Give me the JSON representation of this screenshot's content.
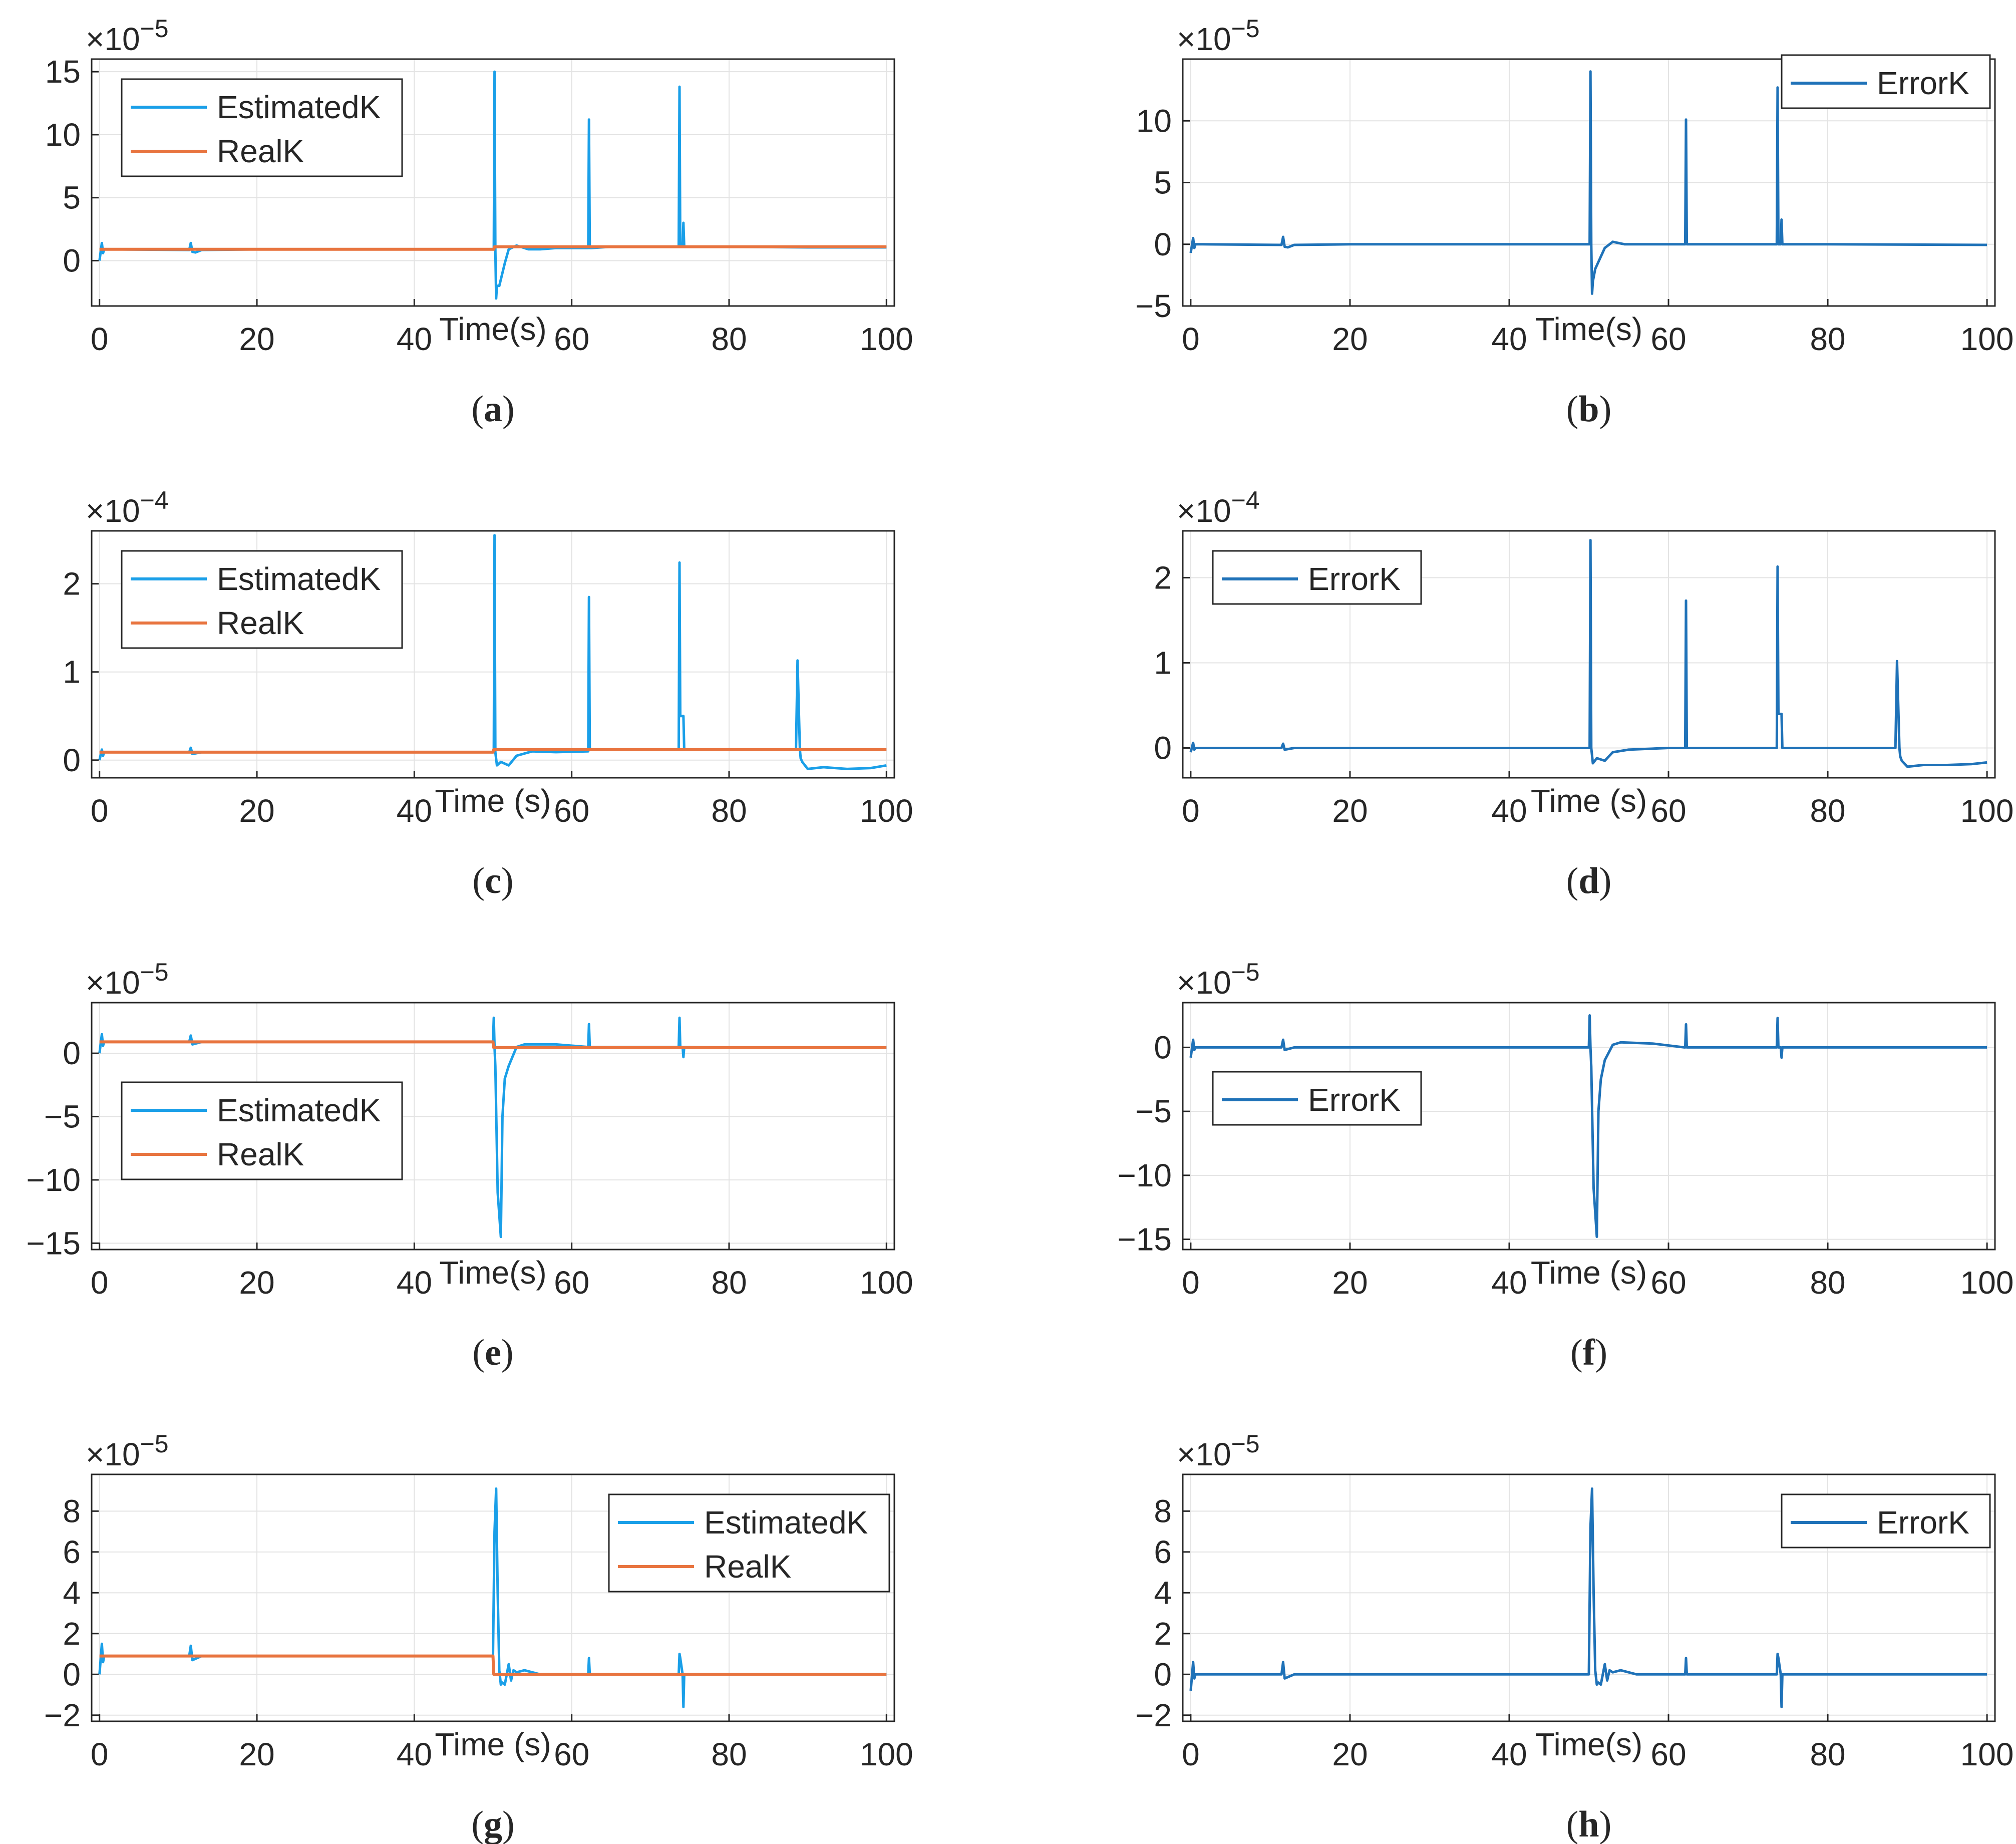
{
  "colors": {
    "estimated": "#1a9fe8",
    "real": "#e8743f",
    "error": "#1f72b8",
    "axis": "#262626",
    "grid": "#e3e3e3"
  },
  "chart_data": [
    {
      "id": "a",
      "caption_letter": "a",
      "type": "line",
      "exponent_text": "×10",
      "exponent": "−5",
      "xlabel": "Time(s)",
      "xlim": [
        -1,
        101
      ],
      "xticks": [
        0,
        20,
        40,
        60,
        80,
        100
      ],
      "xtick_labels": [
        "0",
        "20",
        "40",
        "60",
        "80",
        "100"
      ],
      "ylim": [
        -3.6,
        16
      ],
      "yticks": [
        0,
        5,
        10,
        15
      ],
      "ytick_labels": [
        "0",
        "5",
        "10",
        "15"
      ],
      "grid": true,
      "legend_position": "top-left",
      "series": [
        {
          "name": "EstimatedK",
          "color_key": "estimated",
          "x": [
            0,
            0.3,
            0.45,
            0.6,
            0.8,
            1.5,
            11.4,
            11.6,
            11.8,
            12.2,
            13,
            20,
            40,
            50.1,
            50.2,
            50.3,
            50.4,
            50.5,
            50.8,
            51.5,
            52,
            53,
            54.5,
            56,
            58,
            60,
            62.1,
            62.2,
            62.3,
            62.5,
            65,
            70,
            73.6,
            73.7,
            73.8,
            74.1,
            74.2,
            74.3,
            74.5,
            80,
            90,
            100
          ],
          "y": [
            0,
            1.4,
            0.6,
            0.9,
            0.9,
            0.9,
            0.85,
            1.4,
            0.7,
            0.65,
            0.85,
            0.9,
            0.9,
            0.9,
            15,
            0.9,
            -3,
            -2,
            -2,
            -0.2,
            0.9,
            1.2,
            0.9,
            0.9,
            1,
            1,
            1,
            11.2,
            1,
            1,
            1.1,
            1.1,
            1.1,
            13.8,
            1.1,
            1.1,
            3,
            1.1,
            1.1,
            1.1,
            1.05,
            1.05
          ]
        },
        {
          "name": "RealK",
          "color_key": "real",
          "x": [
            0,
            50.1,
            50.2,
            100
          ],
          "y": [
            0.9,
            0.9,
            1.1,
            1.1
          ]
        }
      ]
    },
    {
      "id": "b",
      "caption_letter": "b",
      "type": "line",
      "exponent_text": "×10",
      "exponent": "−5",
      "xlabel": "Time(s)",
      "xlim": [
        -1,
        101
      ],
      "xticks": [
        0,
        20,
        40,
        60,
        80,
        100
      ],
      "xtick_labels": [
        "0",
        "20",
        "40",
        "60",
        "80",
        "100"
      ],
      "ylim": [
        -5,
        15
      ],
      "yticks": [
        -5,
        0,
        5,
        10
      ],
      "ytick_labels": [
        "−5",
        "0",
        "5",
        "10"
      ],
      "grid": true,
      "legend_position": "top-right",
      "series": [
        {
          "name": "ErrorK",
          "color_key": "error",
          "x": [
            0,
            0.3,
            0.45,
            0.6,
            1.5,
            11.4,
            11.6,
            11.8,
            12.2,
            13,
            20,
            40,
            50.1,
            50.2,
            50.3,
            50.4,
            50.5,
            50.8,
            51.5,
            52,
            53,
            54.5,
            56,
            60,
            62.1,
            62.2,
            62.3,
            65,
            73.6,
            73.7,
            73.8,
            74.1,
            74.2,
            74.3,
            80,
            100
          ],
          "y": [
            -0.7,
            0.5,
            -0.3,
            0,
            0,
            -0.05,
            0.6,
            -0.2,
            -0.25,
            -0.05,
            0,
            0,
            0,
            14,
            0,
            -4,
            -3,
            -2,
            -1,
            -0.3,
            0.2,
            0,
            0,
            0,
            0,
            10.1,
            0,
            0,
            0,
            12.7,
            0,
            0,
            2,
            0,
            0,
            -0.05
          ]
        }
      ]
    },
    {
      "id": "c",
      "caption_letter": "c",
      "type": "line",
      "exponent_text": "×10",
      "exponent": "−4",
      "xlabel": "Time (s)",
      "xlim": [
        -1,
        101
      ],
      "xticks": [
        0,
        20,
        40,
        60,
        80,
        100
      ],
      "xtick_labels": [
        "0",
        "20",
        "40",
        "60",
        "80",
        "100"
      ],
      "ylim": [
        -0.2,
        2.6
      ],
      "yticks": [
        0,
        1,
        2
      ],
      "ytick_labels": [
        "0",
        "1",
        "2"
      ],
      "grid": true,
      "legend_position": "top-left",
      "series": [
        {
          "name": "EstimatedK",
          "color_key": "estimated",
          "x": [
            0,
            0.3,
            0.45,
            0.6,
            1.5,
            11.4,
            11.6,
            11.8,
            13,
            40,
            50.1,
            50.2,
            50.3,
            50.5,
            51,
            52,
            53,
            55,
            58,
            62.1,
            62.2,
            62.3,
            65,
            73.6,
            73.7,
            73.8,
            74.2,
            74.3,
            80,
            88.5,
            88.6,
            88.7,
            89.0,
            89.1,
            89.3,
            90,
            92,
            95,
            98,
            100
          ],
          "y": [
            0,
            0.12,
            0.05,
            0.09,
            0.09,
            0.09,
            0.14,
            0.07,
            0.09,
            0.09,
            0.09,
            2.55,
            0.09,
            -0.06,
            -0.02,
            -0.06,
            0.05,
            0.1,
            0.09,
            0.1,
            1.85,
            0.12,
            0.12,
            0.12,
            2.24,
            0.5,
            0.5,
            0.12,
            0.12,
            0.12,
            0.6,
            1.13,
            0.12,
            0.02,
            -0.02,
            -0.1,
            -0.08,
            -0.1,
            -0.09,
            -0.06
          ]
        },
        {
          "name": "RealK",
          "color_key": "real",
          "x": [
            0,
            50,
            50.1,
            100
          ],
          "y": [
            0.09,
            0.09,
            0.12,
            0.12
          ]
        }
      ]
    },
    {
      "id": "d",
      "caption_letter": "d",
      "type": "line",
      "exponent_text": "×10",
      "exponent": "−4",
      "xlabel": "Time (s)",
      "xlim": [
        -1,
        101
      ],
      "xticks": [
        0,
        20,
        40,
        60,
        80,
        100
      ],
      "xtick_labels": [
        "0",
        "20",
        "40",
        "60",
        "80",
        "100"
      ],
      "ylim": [
        -0.35,
        2.55
      ],
      "yticks": [
        0,
        1,
        2
      ],
      "ytick_labels": [
        "0",
        "1",
        "2"
      ],
      "grid": true,
      "legend_position": "top-left",
      "series": [
        {
          "name": "ErrorK",
          "color_key": "error",
          "x": [
            0,
            0.3,
            0.45,
            0.6,
            1.5,
            11.4,
            11.6,
            11.8,
            13,
            40,
            50.1,
            50.2,
            50.3,
            50.5,
            51,
            52,
            53,
            55,
            60,
            62.1,
            62.2,
            62.3,
            65,
            73.6,
            73.7,
            73.8,
            74.2,
            74.3,
            80,
            88.5,
            88.6,
            88.7,
            89.0,
            89.1,
            89.3,
            90,
            92,
            95,
            98,
            100
          ],
          "y": [
            -0.05,
            0.06,
            -0.02,
            0,
            0,
            0,
            0.05,
            -0.02,
            0,
            0,
            0,
            2.44,
            0,
            -0.18,
            -0.12,
            -0.15,
            -0.05,
            -0.02,
            0,
            0,
            1.73,
            0,
            0,
            0,
            2.13,
            0.4,
            0.4,
            0,
            0,
            0,
            0.5,
            1.02,
            0,
            -0.1,
            -0.15,
            -0.22,
            -0.2,
            -0.2,
            -0.19,
            -0.17
          ]
        }
      ]
    },
    {
      "id": "e",
      "caption_letter": "e",
      "type": "line",
      "exponent_text": "×10",
      "exponent": "−5",
      "xlabel": "Time(s)",
      "xlim": [
        -1,
        101
      ],
      "xticks": [
        0,
        20,
        40,
        60,
        80,
        100
      ],
      "xtick_labels": [
        "0",
        "20",
        "40",
        "60",
        "80",
        "100"
      ],
      "ylim": [
        -15.5,
        4
      ],
      "yticks": [
        -15,
        -10,
        -5,
        0
      ],
      "ytick_labels": [
        "−15",
        "−10",
        "−5",
        "0"
      ],
      "grid": true,
      "legend_position": "bottom-left",
      "series": [
        {
          "name": "EstimatedK",
          "color_key": "estimated",
          "x": [
            0,
            0.3,
            0.45,
            0.6,
            1.5,
            11.4,
            11.6,
            11.8,
            13,
            40,
            50,
            50.1,
            50.2,
            50.3,
            50.6,
            51,
            51.2,
            51.5,
            52,
            53,
            54,
            58,
            62,
            62.1,
            62.2,
            62.3,
            65,
            73.6,
            73.7,
            73.8,
            74.1,
            74.2,
            74.3,
            80,
            100
          ],
          "y": [
            0,
            1.5,
            0.6,
            0.9,
            0.9,
            0.9,
            1.4,
            0.7,
            0.9,
            0.9,
            0.9,
            2.8,
            0.5,
            -1,
            -11,
            -14.5,
            -5,
            -2,
            -1,
            0.5,
            0.7,
            0.7,
            0.5,
            0.5,
            2.3,
            0.5,
            0.5,
            0.5,
            2.8,
            0.5,
            0.5,
            -0.3,
            0.5,
            0.45,
            0.45
          ]
        },
        {
          "name": "RealK",
          "color_key": "real",
          "x": [
            0,
            50,
            50.1,
            100
          ],
          "y": [
            0.9,
            0.9,
            0.45,
            0.45
          ]
        }
      ]
    },
    {
      "id": "f",
      "caption_letter": "f",
      "type": "line",
      "exponent_text": "×10",
      "exponent": "−5",
      "xlabel": "Time (s)",
      "xlim": [
        -1,
        101
      ],
      "xticks": [
        0,
        20,
        40,
        60,
        80,
        100
      ],
      "xtick_labels": [
        "0",
        "20",
        "40",
        "60",
        "80",
        "100"
      ],
      "ylim": [
        -15.8,
        3.5
      ],
      "yticks": [
        -15,
        -10,
        -5,
        0
      ],
      "ytick_labels": [
        "−15",
        "−10",
        "−5",
        "0"
      ],
      "grid": true,
      "legend_position": "middle-left",
      "series": [
        {
          "name": "ErrorK",
          "color_key": "error",
          "x": [
            0,
            0.3,
            0.45,
            0.6,
            1.5,
            11.4,
            11.6,
            11.8,
            13,
            40,
            50,
            50.1,
            50.2,
            50.3,
            50.6,
            51,
            51.2,
            51.5,
            52,
            53,
            54,
            58,
            62,
            62.1,
            62.2,
            62.3,
            65,
            73.6,
            73.7,
            73.8,
            74.1,
            74.2,
            74.3,
            80,
            100
          ],
          "y": [
            -0.8,
            0.6,
            -0.2,
            0,
            0,
            0,
            0.6,
            -0.2,
            0,
            0,
            0,
            2.5,
            0,
            -1.5,
            -11,
            -14.8,
            -5,
            -2.5,
            -1,
            0.2,
            0.4,
            0.3,
            0,
            0,
            1.8,
            0,
            0,
            0,
            2.3,
            0,
            0,
            -0.8,
            0,
            0,
            0
          ]
        }
      ]
    },
    {
      "id": "g",
      "caption_letter": "g",
      "type": "line",
      "exponent_text": "×10",
      "exponent": "−5",
      "xlabel": "Time (s)",
      "xlim": [
        -1,
        101
      ],
      "xticks": [
        0,
        20,
        40,
        60,
        80,
        100
      ],
      "xtick_labels": [
        "0",
        "20",
        "40",
        "60",
        "80",
        "100"
      ],
      "ylim": [
        -2.3,
        9.8
      ],
      "yticks": [
        -2,
        0,
        2,
        4,
        6,
        8
      ],
      "ytick_labels": [
        "−2",
        "0",
        "2",
        "4",
        "6",
        "8"
      ],
      "grid": true,
      "legend_position": "top-right",
      "series": [
        {
          "name": "EstimatedK",
          "color_key": "estimated",
          "x": [
            0,
            0.3,
            0.45,
            0.6,
            1.5,
            11.4,
            11.6,
            11.8,
            13,
            40,
            50,
            50.2,
            50.4,
            50.6,
            50.8,
            51,
            51.2,
            51.5,
            52,
            52.3,
            52.6,
            53,
            54,
            56,
            58,
            62,
            62.1,
            62.2,
            62.3,
            65,
            73.6,
            73.7,
            73.8,
            74.1,
            74.2,
            74.3,
            80,
            100
          ],
          "y": [
            0,
            1.5,
            0.6,
            0.9,
            0.9,
            0.9,
            1.4,
            0.7,
            0.9,
            0.9,
            0.9,
            7,
            9.1,
            4,
            0.2,
            -0.5,
            -0.4,
            -0.5,
            0.5,
            -0.3,
            0.2,
            0.1,
            0.2,
            0,
            0,
            0,
            0,
            0.8,
            0,
            0,
            0,
            1,
            0.8,
            0,
            -1.6,
            0,
            0,
            0
          ]
        },
        {
          "name": "RealK",
          "color_key": "real",
          "x": [
            0,
            50,
            50.1,
            100
          ],
          "y": [
            0.9,
            0.9,
            0,
            0
          ]
        }
      ]
    },
    {
      "id": "h",
      "caption_letter": "h",
      "type": "line",
      "exponent_text": "×10",
      "exponent": "−5",
      "xlabel": "Time(s)",
      "xlim": [
        -1,
        101
      ],
      "xticks": [
        0,
        20,
        40,
        60,
        80,
        100
      ],
      "xtick_labels": [
        "0",
        "20",
        "40",
        "60",
        "80",
        "100"
      ],
      "ylim": [
        -2.3,
        9.8
      ],
      "yticks": [
        -2,
        0,
        2,
        4,
        6,
        8
      ],
      "ytick_labels": [
        "−2",
        "0",
        "2",
        "4",
        "6",
        "8"
      ],
      "grid": true,
      "legend_position": "top-right",
      "series": [
        {
          "name": "ErrorK",
          "color_key": "error",
          "x": [
            0,
            0.3,
            0.45,
            0.6,
            1.5,
            11.4,
            11.6,
            11.8,
            13,
            40,
            50,
            50.2,
            50.4,
            50.6,
            50.8,
            51,
            51.2,
            51.5,
            52,
            52.3,
            52.6,
            53,
            54,
            56,
            58,
            62,
            62.1,
            62.2,
            62.3,
            65,
            73.6,
            73.7,
            73.8,
            74.1,
            74.2,
            74.3,
            80,
            100
          ],
          "y": [
            -0.8,
            0.6,
            -0.2,
            0,
            0,
            0,
            0.6,
            -0.2,
            0,
            0,
            0,
            7.2,
            9.1,
            4,
            0.2,
            -0.5,
            -0.4,
            -0.5,
            0.5,
            -0.3,
            0.2,
            0.1,
            0.2,
            0,
            0,
            0,
            0,
            0.8,
            0,
            0,
            0,
            1,
            0.8,
            0,
            -1.6,
            0,
            0,
            0
          ]
        }
      ]
    }
  ]
}
